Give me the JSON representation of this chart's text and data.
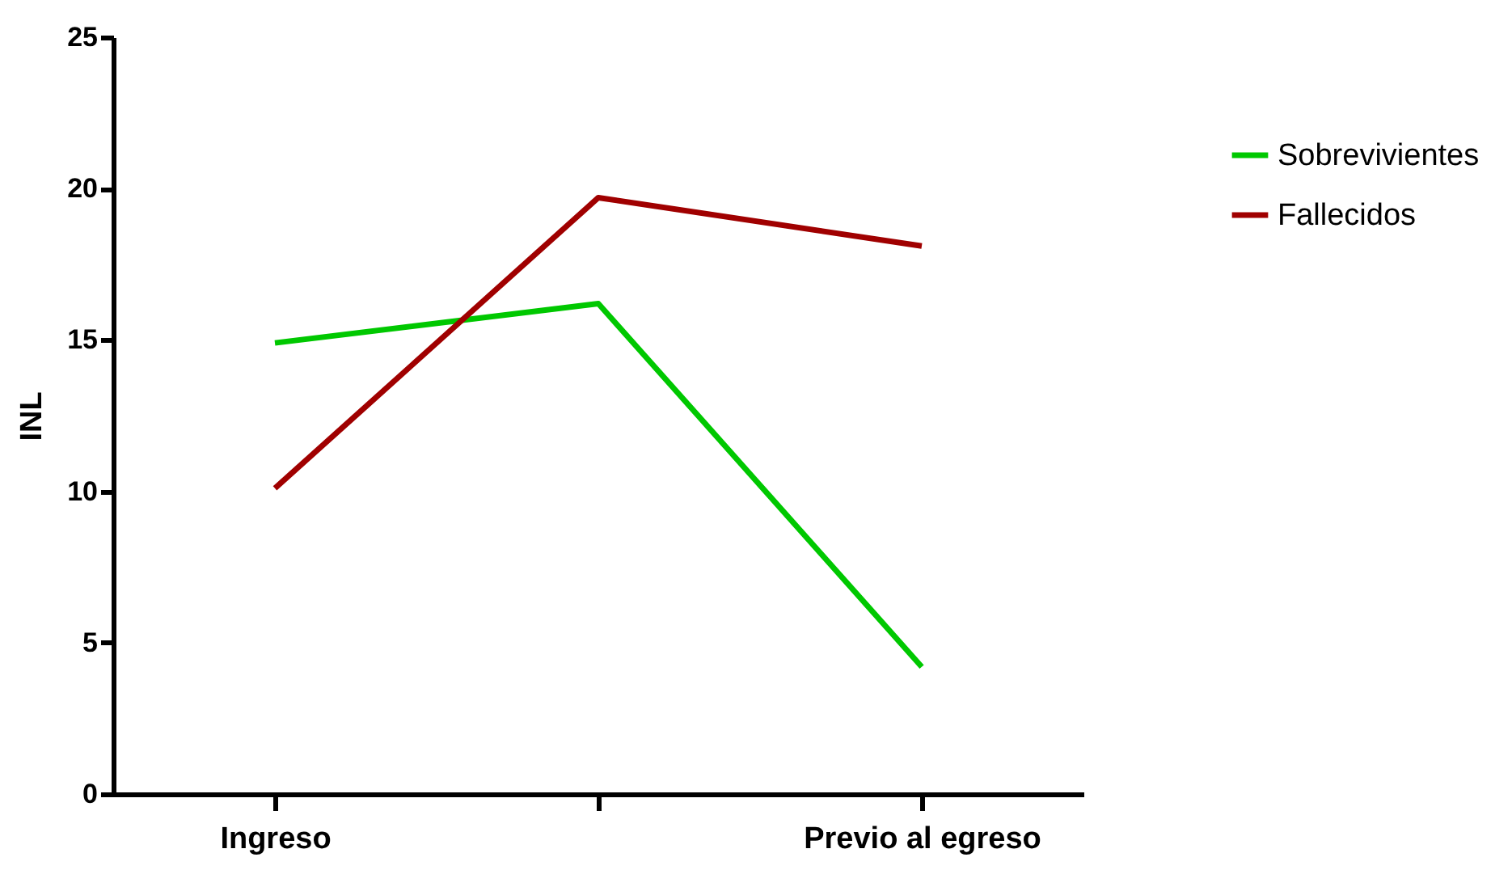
{
  "chart_data": {
    "type": "line",
    "ylabel": "INL",
    "categories": [
      "Ingreso",
      null,
      "Previo al egreso"
    ],
    "series": [
      {
        "name": "Sobrevivientes",
        "color": "#00c800",
        "values": [
          14.9,
          16.2,
          4.2
        ]
      },
      {
        "name": "Fallecidos",
        "color": "#a00000",
        "values": [
          10.1,
          19.7,
          18.1
        ]
      }
    ],
    "ylim": [
      0,
      25
    ],
    "yticks": [
      0,
      5,
      10,
      15,
      20,
      25
    ],
    "grid": false,
    "legend": "top right",
    "marker": "none",
    "line_style": "solid"
  }
}
